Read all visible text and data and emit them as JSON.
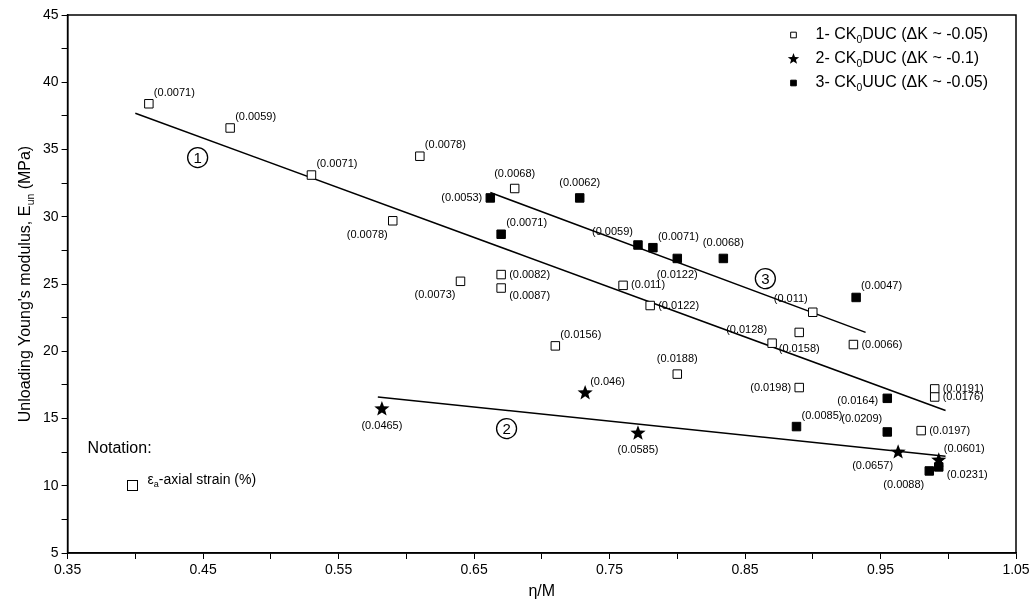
{
  "chart_data": {
    "type": "scatter",
    "xlabel": "η/M",
    "ylabel": "Unloading Young's modulus, E$_{un}$ (MPa)",
    "xlim": [
      0.35,
      1.05
    ],
    "xticks": [
      0.35,
      {
        "value": 0.4,
        "label": null
      },
      0.45,
      {
        "value": 0.5,
        "label": null
      },
      0.55,
      {
        "value": 0.6,
        "label": null
      },
      0.65,
      {
        "value": 0.7,
        "label": null
      },
      0.75,
      {
        "value": 0.8,
        "label": null
      },
      0.85,
      {
        "value": 0.9,
        "label": null
      },
      0.95,
      {
        "value": 1.0,
        "label": null
      },
      1.05
    ],
    "ylim": [
      5,
      45
    ],
    "yticks": [
      5,
      {
        "value": 7.5,
        "label": null
      },
      10,
      {
        "value": 12.5,
        "label": null
      },
      15,
      {
        "value": 17.5,
        "label": null
      },
      20,
      {
        "value": 22.5,
        "label": null
      },
      25,
      {
        "value": 27.5,
        "label": null
      },
      30,
      {
        "value": 32.5,
        "label": null
      },
      35,
      {
        "value": 37.5,
        "label": null
      },
      40,
      {
        "value": 42.5,
        "label": null
      },
      45
    ],
    "grid": false,
    "legend": "top right",
    "series": [
      {
        "name": "1- CK$_{0}$DUC (ΔK ~ -0.05)",
        "marker": "square",
        "color": "#ffffff",
        "x": [
          0.41,
          0.47,
          0.53,
          0.59,
          0.61,
          0.64,
          0.67,
          0.67,
          0.68,
          0.71,
          0.76,
          0.78,
          0.8,
          0.87,
          0.89,
          0.89,
          0.9,
          0.93,
          0.98,
          0.99,
          0.99
        ],
        "values": [
          38.4,
          36.6,
          33.1,
          29.7,
          34.5,
          25.2,
          25.7,
          24.7,
          32.1,
          20.4,
          24.9,
          23.4,
          18.3,
          20.6,
          21.4,
          17.3,
          22.9,
          20.5,
          14.1,
          17.2,
          16.6
        ]
      },
      {
        "name": "2- CK$_{0}$DUC (ΔK ~ -0.1)",
        "marker": "star",
        "color": "#000000",
        "x": [
          0.582,
          0.732,
          0.771,
          0.963,
          0.993
        ],
        "values": [
          15.7,
          16.9,
          13.9,
          12.5,
          11.9
        ]
      },
      {
        "name": "3- CK$_{0}$UUC (ΔK ~ -0.05)",
        "marker": "square",
        "color": "#000000",
        "x": [
          0.662,
          0.67,
          0.728,
          0.771,
          0.782,
          0.8,
          0.834,
          0.932,
          0.955,
          0.888,
          0.955,
          0.986,
          0.993
        ],
        "values": [
          31.4,
          28.7,
          31.4,
          27.9,
          27.7,
          26.9,
          26.9,
          24.0,
          16.5,
          14.4,
          14.0,
          11.1,
          11.4
        ]
      },
      {
        "type": "line",
        "marker": "none",
        "color": "#000000",
        "x": [
          0.4,
          0.998
        ],
        "values": [
          37.7,
          15.6
        ]
      },
      {
        "type": "line",
        "marker": "none",
        "color": "#000000",
        "x": [
          0.579,
          0.998
        ],
        "values": [
          16.6,
          12.2
        ]
      },
      {
        "type": "line",
        "marker": "none",
        "color": "#000000",
        "x": [
          0.662,
          0.939
        ],
        "values": [
          31.8,
          21.4
        ]
      }
    ],
    "annotations": [
      {
        "text": "(0.0071)",
        "x": 0.41,
        "y": 38.4
      },
      {
        "text": "(0.0059)",
        "x": 0.47,
        "y": 36.6
      },
      {
        "text": "(0.0071)",
        "x": 0.53,
        "y": 33.1
      },
      {
        "text": "(0.0078)",
        "x": 0.59,
        "y": 29.7
      },
      {
        "text": "(0.0078)",
        "x": 0.61,
        "y": 34.5
      },
      {
        "text": "(0.0073)",
        "x": 0.64,
        "y": 25.2
      },
      {
        "text": "(0.0082)",
        "x": 0.67,
        "y": 25.7
      },
      {
        "text": "(0.0087)",
        "x": 0.67,
        "y": 24.7
      },
      {
        "text": "(0.0068)",
        "x": 0.68,
        "y": 32.1
      },
      {
        "text": "(0.0156)",
        "x": 0.71,
        "y": 20.4
      },
      {
        "text": "(0.011)",
        "x": 0.76,
        "y": 24.9
      },
      {
        "text": "(0.0122)",
        "x": 0.78,
        "y": 23.4
      },
      {
        "text": "(0.0188)",
        "x": 0.8,
        "y": 18.3
      },
      {
        "text": "(0.0128)",
        "x": 0.87,
        "y": 20.6
      },
      {
        "text": "(0.0158)",
        "x": 0.89,
        "y": 21.4
      },
      {
        "text": "(0.0198)",
        "x": 0.89,
        "y": 17.3
      },
      {
        "text": "(0.011)",
        "x": 0.9,
        "y": 22.9
      },
      {
        "text": "(0.0066)",
        "x": 0.93,
        "y": 20.5
      },
      {
        "text": "(0.0197)",
        "x": 0.98,
        "y": 14.1
      },
      {
        "text": "(0.0191)",
        "x": 0.99,
        "y": 17.2
      },
      {
        "text": "(0.0176)",
        "x": 0.99,
        "y": 16.6
      },
      {
        "text": "(0.0465)",
        "x": 0.582,
        "y": 15.7
      },
      {
        "text": "(0.046)",
        "x": 0.732,
        "y": 16.9
      },
      {
        "text": "(0.0585)",
        "x": 0.771,
        "y": 13.9
      },
      {
        "text": "(0.0657)",
        "x": 0.963,
        "y": 12.5
      },
      {
        "text": "(0.0601)",
        "x": 0.993,
        "y": 11.9
      },
      {
        "text": "(0.0053)",
        "x": 0.662,
        "y": 31.4
      },
      {
        "text": "(0.0071)",
        "x": 0.67,
        "y": 28.7
      },
      {
        "text": "(0.0062)",
        "x": 0.728,
        "y": 31.4
      },
      {
        "text": "(0.0059)",
        "x": 0.771,
        "y": 27.9
      },
      {
        "text": "(0.0071)",
        "x": 0.782,
        "y": 27.7
      },
      {
        "text": "(0.0122)",
        "x": 0.8,
        "y": 26.9
      },
      {
        "text": "(0.0068)",
        "x": 0.834,
        "y": 26.9
      },
      {
        "text": "(0.0047)",
        "x": 0.932,
        "y": 24.0
      },
      {
        "text": "(0.0164)",
        "x": 0.955,
        "y": 16.5
      },
      {
        "text": "(0.0085)",
        "x": 0.888,
        "y": 14.4
      },
      {
        "text": "(0.0209)",
        "x": 0.955,
        "y": 14.0
      },
      {
        "text": "(0.0088)",
        "x": 0.986,
        "y": 11.1
      },
      {
        "text": "(0.0231)",
        "x": 0.993,
        "y": 11.4
      },
      {
        "text": "1",
        "x": 0.446,
        "y": 34.4
      },
      {
        "text": "2",
        "x": 0.674,
        "y": 14.25
      },
      {
        "text": "3",
        "x": 0.865,
        "y": 25.4
      },
      "Notation:",
      "ε$_{a}$-axial strain (%)"
    ]
  }
}
